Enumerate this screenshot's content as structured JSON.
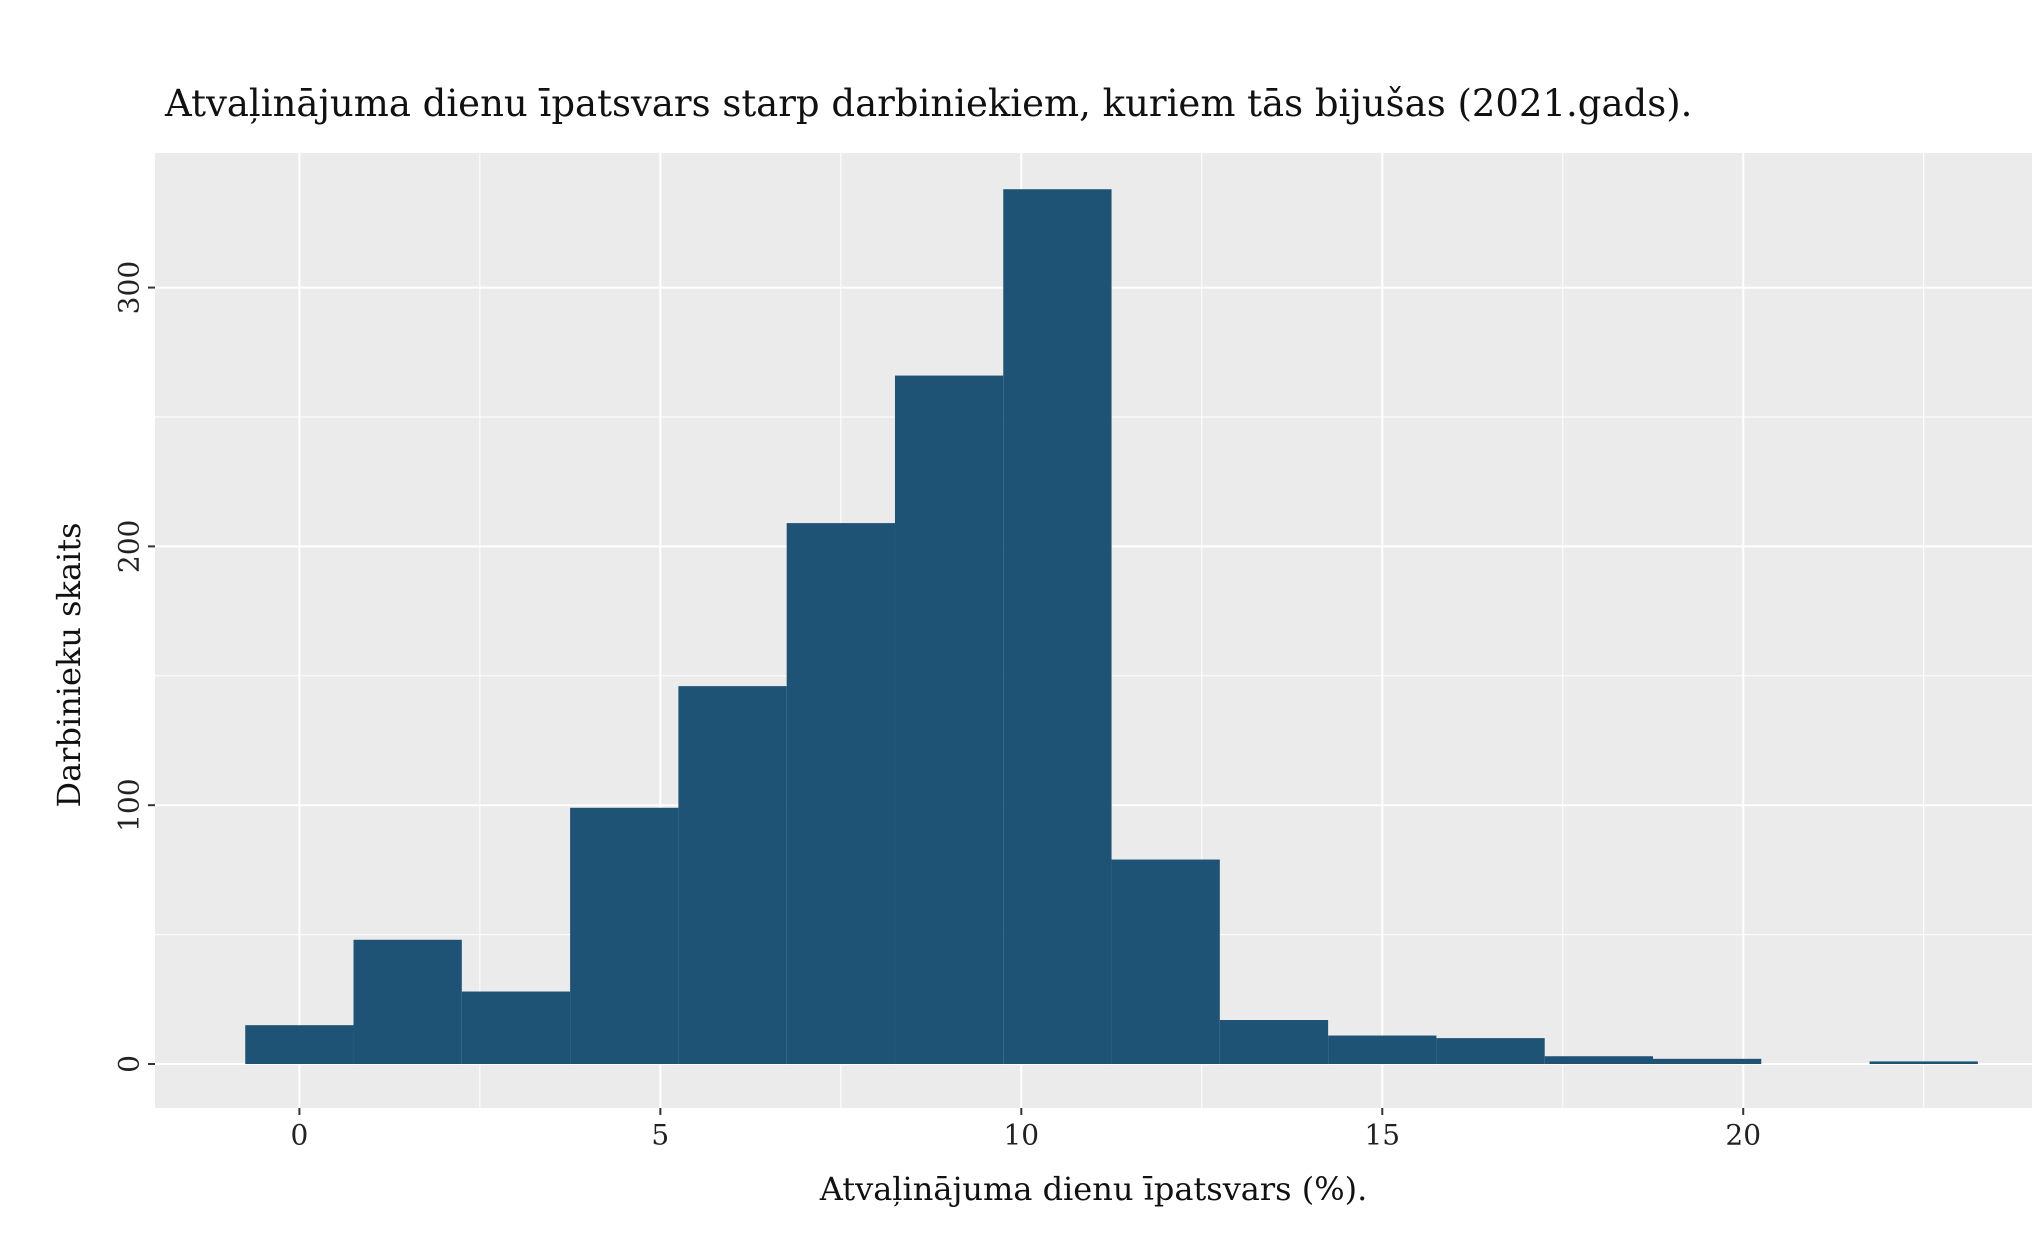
{
  "chart_data": {
    "type": "bar",
    "title": "Atvaļinājuma dienu īpatsvars starp darbiniekiem, kuriem tās bijušas (2021.gads).",
    "xlabel": "Atvaļinājuma dienu īpatsvars (%).",
    "ylabel": "Darbinieku skaits",
    "xlim": [
      -2,
      24
    ],
    "ylim": [
      -17,
      352
    ],
    "x_ticks": [
      0,
      5,
      10,
      15,
      20
    ],
    "x_tick_labels": [
      "0",
      "5",
      "10",
      "15",
      "20"
    ],
    "y_ticks": [
      0,
      100,
      200,
      300
    ],
    "y_tick_labels": [
      "0",
      "100",
      "200",
      "300"
    ],
    "bin_width": 1.5,
    "series": [
      {
        "color": "#1f5375",
        "bins": [
          {
            "x0": -0.75,
            "x1": 0.75,
            "count": 15
          },
          {
            "x0": 0.75,
            "x1": 2.25,
            "count": 48
          },
          {
            "x0": 2.25,
            "x1": 3.75,
            "count": 28
          },
          {
            "x0": 3.75,
            "x1": 5.25,
            "count": 99
          },
          {
            "x0": 5.25,
            "x1": 6.75,
            "count": 146
          },
          {
            "x0": 6.75,
            "x1": 8.25,
            "count": 209
          },
          {
            "x0": 8.25,
            "x1": 9.75,
            "count": 266
          },
          {
            "x0": 9.75,
            "x1": 11.25,
            "count": 338
          },
          {
            "x0": 11.25,
            "x1": 12.75,
            "count": 79
          },
          {
            "x0": 12.75,
            "x1": 14.25,
            "count": 17
          },
          {
            "x0": 14.25,
            "x1": 15.75,
            "count": 11
          },
          {
            "x0": 15.75,
            "x1": 17.25,
            "count": 10
          },
          {
            "x0": 17.25,
            "x1": 18.75,
            "count": 3
          },
          {
            "x0": 18.75,
            "x1": 20.25,
            "count": 2
          },
          {
            "x0": 20.25,
            "x1": 21.75,
            "count": 0
          },
          {
            "x0": 21.75,
            "x1": 23.25,
            "count": 1
          }
        ]
      }
    ],
    "grid": true,
    "panel_color": "#ebebeb",
    "grid_color": "#ffffff",
    "legend": "none"
  }
}
